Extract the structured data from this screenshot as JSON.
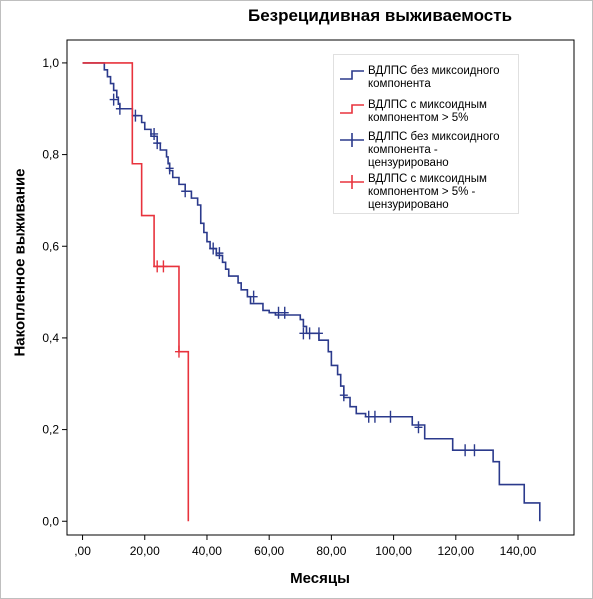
{
  "chart_data": {
    "type": "line",
    "subtype": "kaplan-meier step",
    "title": "Безрецидивная выживаемость",
    "xlabel": "Месяцы",
    "ylabel": "Накопленное выживание",
    "xlim": [
      -5,
      158
    ],
    "ylim": [
      -0.03,
      1.05
    ],
    "x_ticks": [
      0,
      20,
      40,
      60,
      80,
      100,
      120,
      140
    ],
    "x_tick_labels": [
      ",00",
      "20,00",
      "40,00",
      "60,00",
      "80,00",
      "100,00",
      "120,00",
      "140,00"
    ],
    "y_ticks": [
      0,
      0.2,
      0.4,
      0.6,
      0.8,
      1.0
    ],
    "y_tick_labels": [
      "0,0",
      "0,2",
      "0,4",
      "0,6",
      "0,8",
      "1,0"
    ],
    "grid": false,
    "legend_position": "top-right",
    "series": [
      {
        "name": "ВДЛПС без миксоидного компонента",
        "color": "#2b3a8c",
        "steps": [
          [
            0,
            1.0
          ],
          [
            7,
            0.985
          ],
          [
            8,
            0.97
          ],
          [
            9,
            0.955
          ],
          [
            10,
            0.94
          ],
          [
            11,
            0.925
          ],
          [
            11.5,
            0.91
          ],
          [
            12,
            0.9
          ],
          [
            16,
            0.885
          ],
          [
            19,
            0.87
          ],
          [
            20,
            0.855
          ],
          [
            22,
            0.84
          ],
          [
            24,
            0.825
          ],
          [
            25,
            0.81
          ],
          [
            27,
            0.795
          ],
          [
            27.5,
            0.78
          ],
          [
            28,
            0.765
          ],
          [
            29,
            0.75
          ],
          [
            31,
            0.735
          ],
          [
            33,
            0.72
          ],
          [
            35,
            0.705
          ],
          [
            37,
            0.69
          ],
          [
            38,
            0.65
          ],
          [
            39,
            0.63
          ],
          [
            40,
            0.61
          ],
          [
            41,
            0.595
          ],
          [
            43,
            0.58
          ],
          [
            45,
            0.565
          ],
          [
            46,
            0.55
          ],
          [
            47,
            0.535
          ],
          [
            50,
            0.52
          ],
          [
            51,
            0.505
          ],
          [
            53,
            0.49
          ],
          [
            54,
            0.475
          ],
          [
            58,
            0.46
          ],
          [
            60,
            0.455
          ],
          [
            62,
            0.45
          ],
          [
            70,
            0.44
          ],
          [
            71,
            0.425
          ],
          [
            72,
            0.41
          ],
          [
            76,
            0.395
          ],
          [
            79,
            0.37
          ],
          [
            80,
            0.34
          ],
          [
            82,
            0.32
          ],
          [
            83,
            0.295
          ],
          [
            84,
            0.27
          ],
          [
            86,
            0.25
          ],
          [
            88,
            0.235
          ],
          [
            91,
            0.228
          ],
          [
            106,
            0.21
          ],
          [
            110,
            0.18
          ],
          [
            119,
            0.155
          ],
          [
            132,
            0.13
          ],
          [
            134,
            0.08
          ],
          [
            142,
            0.04
          ],
          [
            147,
            0.0
          ]
        ],
        "censored": [
          [
            10,
            0.92
          ],
          [
            12,
            0.9
          ],
          [
            17,
            0.885
          ],
          [
            23,
            0.845
          ],
          [
            24,
            0.825
          ],
          [
            28,
            0.77
          ],
          [
            33,
            0.72
          ],
          [
            42,
            0.595
          ],
          [
            44,
            0.585
          ],
          [
            55,
            0.49
          ],
          [
            63,
            0.455
          ],
          [
            65,
            0.455
          ],
          [
            71,
            0.41
          ],
          [
            73,
            0.41
          ],
          [
            76,
            0.41
          ],
          [
            84,
            0.275
          ],
          [
            92,
            0.228
          ],
          [
            94,
            0.228
          ],
          [
            99,
            0.228
          ],
          [
            108,
            0.205
          ],
          [
            123,
            0.155
          ],
          [
            126,
            0.155
          ]
        ]
      },
      {
        "name": "ВДЛПС с миксоидным компонентом > 5%",
        "color": "#e8333d",
        "steps": [
          [
            0,
            1.0
          ],
          [
            16,
            0.78
          ],
          [
            19,
            0.667
          ],
          [
            23,
            0.556
          ],
          [
            31,
            0.37
          ],
          [
            34,
            0.0
          ]
        ],
        "censored": [
          [
            24,
            0.556
          ],
          [
            26,
            0.556
          ],
          [
            31,
            0.37
          ]
        ]
      }
    ],
    "legend": [
      {
        "text": "ВДЛПС без миксоидного компонента",
        "symbol": "step",
        "color": "#2b3a8c"
      },
      {
        "text": "ВДЛПС с миксоидным компонентом > 5%",
        "symbol": "step",
        "color": "#e8333d"
      },
      {
        "text": "ВДЛПС без миксоидного компонента - цензурировано",
        "symbol": "cross",
        "color": "#2b3a8c"
      },
      {
        "text": "ВДЛПС с миксоидным компонентом > 5% - цензурировано",
        "symbol": "cross",
        "color": "#e8333d"
      }
    ]
  }
}
